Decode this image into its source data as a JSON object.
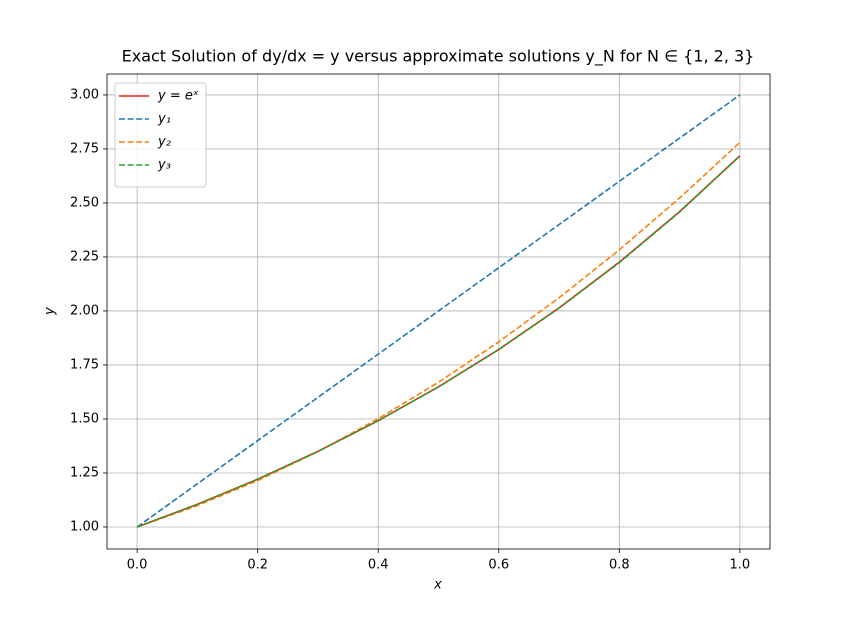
{
  "chart_data": {
    "type": "line",
    "title": "Exact Solution of dy/dx = y versus approximate solutions y_N for N ∈ {1, 2, 3}",
    "x_label": "x",
    "y_label": "y",
    "x": [
      0,
      0.1,
      0.2,
      0.3,
      0.4,
      0.5,
      0.6,
      0.7,
      0.8,
      0.9,
      1.0
    ],
    "series": [
      {
        "name": "y = eˣ",
        "color": "#e8261c",
        "linestyle": "solid",
        "values": [
          1,
          1.105,
          1.221,
          1.35,
          1.492,
          1.649,
          1.822,
          2.014,
          2.226,
          2.46,
          2.718
        ]
      },
      {
        "name": "y₁",
        "color": "#1f77b4",
        "linestyle": "dashed",
        "values": [
          1,
          1.2,
          1.4,
          1.6,
          1.8,
          2.0,
          2.2,
          2.4,
          2.6,
          2.8,
          3.0
        ]
      },
      {
        "name": "y₂",
        "color": "#ff7f0e",
        "linestyle": "dashed",
        "values": [
          1,
          1.099,
          1.215,
          1.349,
          1.501,
          1.67,
          1.857,
          2.061,
          2.283,
          2.523,
          2.78
        ]
      },
      {
        "name": "y₃",
        "color": "#2ca02c",
        "linestyle": "dashed",
        "values": [
          1,
          1.105,
          1.221,
          1.35,
          1.492,
          1.648,
          1.821,
          2.013,
          2.224,
          2.458,
          2.718
        ]
      }
    ],
    "xlim": [
      -0.05,
      1.05
    ],
    "xticks": [
      {
        "value": 0,
        "label": "0.0"
      },
      0.2,
      0.4,
      0.6,
      0.8,
      {
        "value": 1,
        "label": "1.0"
      }
    ],
    "ylim": [
      0.898,
      3.097
    ],
    "yticks": [
      {
        "value": 1,
        "label": "1.00"
      },
      1.25,
      {
        "value": 1.5,
        "label": "1.50"
      },
      1.75,
      {
        "value": 2,
        "label": "2.00"
      },
      2.25,
      {
        "value": 2.5,
        "label": "2.50"
      },
      2.75,
      {
        "value": 3,
        "label": "3.00"
      }
    ],
    "grid": true,
    "legend": "upper left"
  }
}
